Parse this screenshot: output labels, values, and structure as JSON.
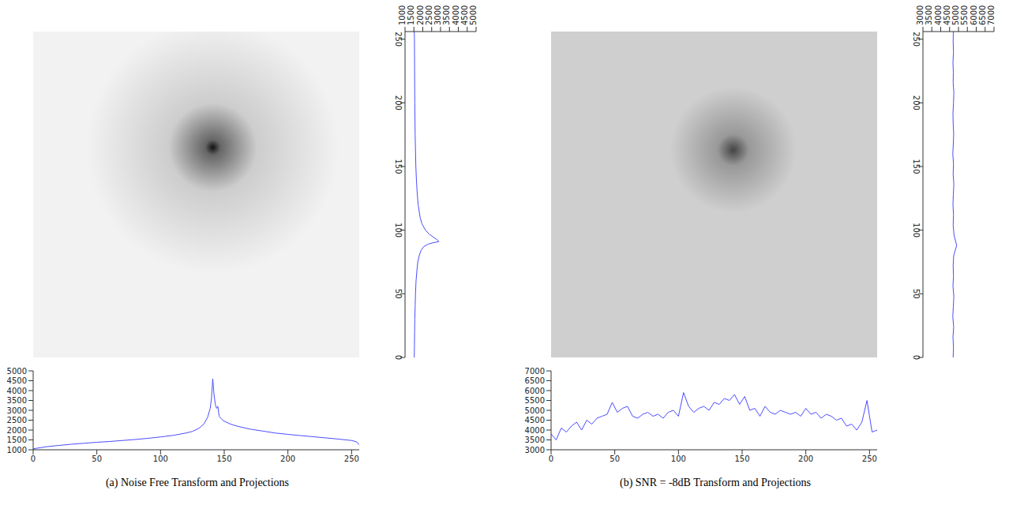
{
  "chart_data": [
    {
      "type": "line",
      "title": "(a) Noise Free Transform and Projections",
      "transform_peak": {
        "x": 141,
        "y": 91
      },
      "bottom": {
        "x": [
          0,
          10,
          20,
          30,
          40,
          50,
          60,
          70,
          80,
          90,
          100,
          110,
          120,
          125,
          130,
          134,
          137,
          139,
          140,
          141,
          142,
          143,
          144,
          145,
          146,
          148,
          150,
          155,
          160,
          170,
          180,
          190,
          200,
          210,
          220,
          230,
          240,
          250,
          254,
          256
        ],
        "values": [
          1050,
          1150,
          1220,
          1280,
          1330,
          1380,
          1420,
          1470,
          1520,
          1580,
          1650,
          1730,
          1850,
          1930,
          2080,
          2300,
          2650,
          3100,
          3600,
          4600,
          3800,
          3300,
          3100,
          3200,
          2700,
          2550,
          2450,
          2300,
          2200,
          2050,
          1950,
          1850,
          1780,
          1720,
          1660,
          1600,
          1540,
          1470,
          1400,
          1250
        ],
        "color": "#4c4cff",
        "xlim": [
          0,
          256
        ],
        "xticks": [
          0,
          50,
          100,
          150,
          200,
          250
        ],
        "ylim": [
          1000,
          5000
        ],
        "yticks": [
          1000,
          1500,
          2000,
          2500,
          3000,
          3500,
          4000,
          4500,
          5000
        ]
      },
      "right": {
        "orientation": "horizontal",
        "x": [
          0,
          10,
          20,
          30,
          40,
          50,
          60,
          70,
          75,
          80,
          84,
          87,
          89,
          90,
          91,
          92,
          93,
          95,
          97,
          100,
          105,
          110,
          120,
          130,
          140,
          150,
          175,
          200,
          225,
          250,
          256
        ],
        "values": [
          1520,
          1530,
          1540,
          1550,
          1570,
          1590,
          1620,
          1680,
          1720,
          1800,
          1900,
          2050,
          2300,
          2550,
          2900,
          2850,
          2750,
          2550,
          2350,
          2150,
          1950,
          1850,
          1740,
          1680,
          1640,
          1610,
          1570,
          1550,
          1540,
          1530,
          1520
        ],
        "color": "#4c4cff",
        "xlim": [
          0,
          256
        ],
        "xticks": [
          0,
          50,
          100,
          150,
          200,
          250
        ],
        "ylim": [
          1000,
          5000
        ],
        "yticks": [
          1000,
          1500,
          2000,
          2500,
          3000,
          3500,
          4000,
          4500,
          5000
        ]
      }
    },
    {
      "type": "line",
      "title": "(b) SNR = -8dB Transform and Projections",
      "transform_peak": {
        "x": 143,
        "y": 93
      },
      "bottom": {
        "x": [
          0,
          4,
          8,
          12,
          16,
          20,
          24,
          28,
          32,
          36,
          40,
          44,
          48,
          52,
          56,
          60,
          64,
          68,
          72,
          76,
          80,
          84,
          88,
          92,
          96,
          100,
          104,
          108,
          112,
          116,
          120,
          124,
          128,
          132,
          136,
          140,
          144,
          148,
          152,
          156,
          160,
          164,
          168,
          172,
          176,
          180,
          184,
          188,
          192,
          196,
          200,
          204,
          208,
          212,
          216,
          220,
          224,
          228,
          232,
          236,
          240,
          244,
          248,
          252,
          256
        ],
        "values": [
          3800,
          3500,
          4100,
          3900,
          4200,
          4400,
          4000,
          4500,
          4300,
          4600,
          4700,
          4800,
          5400,
          4900,
          5100,
          5200,
          4700,
          4600,
          4800,
          4900,
          4700,
          4800,
          4600,
          4900,
          5000,
          4700,
          5900,
          5200,
          4900,
          5100,
          5200,
          5000,
          5400,
          5300,
          5600,
          5500,
          5800,
          5300,
          5700,
          5000,
          5100,
          4700,
          5200,
          4900,
          4800,
          5000,
          4900,
          4800,
          4900,
          4700,
          5100,
          4800,
          4900,
          4600,
          4800,
          4700,
          4500,
          4600,
          4200,
          4300,
          4000,
          4400,
          5500,
          3900,
          4000
        ],
        "color": "#4c4cff",
        "xlim": [
          0,
          256
        ],
        "xticks": [
          0,
          50,
          100,
          150,
          200,
          250
        ],
        "ylim": [
          3000,
          7000
        ],
        "yticks": [
          3000,
          3500,
          4000,
          4500,
          5000,
          5500,
          6000,
          6500,
          7000
        ]
      },
      "right": {
        "orientation": "horizontal",
        "x": [
          0,
          8,
          16,
          24,
          32,
          40,
          48,
          56,
          64,
          72,
          80,
          88,
          96,
          104,
          112,
          120,
          128,
          136,
          144,
          152,
          160,
          168,
          176,
          184,
          192,
          200,
          208,
          216,
          224,
          232,
          240,
          248,
          256
        ],
        "values": [
          4700,
          4720,
          4690,
          4730,
          4680,
          4710,
          4740,
          4690,
          4720,
          4700,
          4730,
          4900,
          4750,
          4700,
          4720,
          4690,
          4710,
          4740,
          4700,
          4720,
          4680,
          4710,
          4730,
          4700,
          4690,
          4720,
          4740,
          4700,
          4710,
          4690,
          4720,
          4700,
          4710
        ],
        "color": "#4c4cff",
        "xlim": [
          0,
          256
        ],
        "xticks": [
          0,
          50,
          100,
          150,
          200,
          250
        ],
        "ylim": [
          3000,
          7000
        ],
        "yticks": [
          3000,
          3500,
          4000,
          4500,
          5000,
          5500,
          6000,
          6500,
          7000
        ]
      }
    }
  ]
}
